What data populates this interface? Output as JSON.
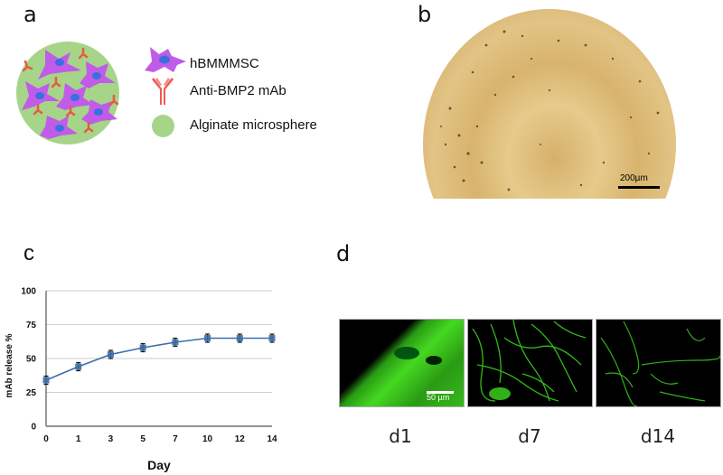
{
  "figure": {
    "panels": {
      "a": {
        "label": "a",
        "legend": [
          {
            "icon": "cell-icon",
            "text": "hBMMMSC",
            "color": "#c05ce8"
          },
          {
            "icon": "antibody-icon",
            "text": "Anti-BMP2 mAb",
            "color": "#e84a3f"
          },
          {
            "icon": "microsphere-icon",
            "text": "Alginate microsphere",
            "color": "#a6d58a"
          }
        ],
        "colors": {
          "sphere": "#a6d58a",
          "cell": "#c05ce8",
          "nucleus": "#3b6fe0",
          "antibody": "#e85a40"
        }
      },
      "b": {
        "label": "b",
        "scale_bar": "200µm",
        "colors": {
          "bg": "#d9b670",
          "dots": "#5a3514"
        }
      },
      "c": {
        "label": "c"
      },
      "d": {
        "label": "d",
        "scale_bar": "50 µm",
        "images": [
          {
            "label": "d1"
          },
          {
            "label": "d7"
          },
          {
            "label": "d14"
          }
        ],
        "color": "#3ddc1f"
      }
    }
  },
  "chart_data": {
    "type": "line",
    "title": "",
    "xlabel": "Day",
    "ylabel": "mAb release %",
    "categories": [
      "0",
      "1",
      "3",
      "5",
      "7",
      "10",
      "12",
      "14"
    ],
    "series": [
      {
        "name": "mAb release",
        "values": [
          34,
          44,
          53,
          58,
          62,
          65,
          65,
          65
        ],
        "errors": [
          3,
          3,
          3,
          3,
          3,
          3,
          3,
          3
        ],
        "color": "#3b6ea8"
      }
    ],
    "yticks": [
      "0",
      "25",
      "50",
      "75",
      "100"
    ],
    "ylim": [
      0,
      100
    ],
    "grid": true,
    "legend": "none"
  }
}
